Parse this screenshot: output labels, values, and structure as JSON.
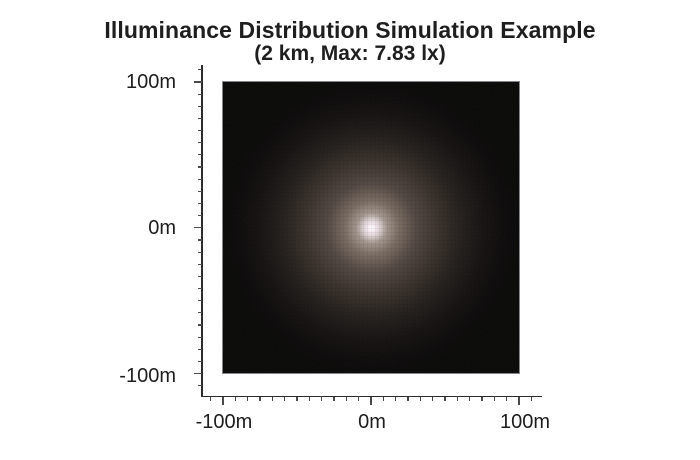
{
  "figure": {
    "title_line1": "Illuminance Distribution Simulation Example",
    "title_line2": "(2 km, Max: 7.83 lx)"
  },
  "axes": {
    "y_tick_labels": [
      "100m",
      "0m",
      "-100m"
    ],
    "x_tick_labels": [
      "-100m",
      "0m",
      "100m"
    ]
  },
  "chart_data": {
    "type": "heatmap",
    "title": "Illuminance Distribution Simulation Example",
    "subtitle": "(2 km, Max: 7.83 lx)",
    "distance_km": 2,
    "max_illuminance_lx": 7.83,
    "x_axis": {
      "tick_labels": [
        "-100m",
        "0m",
        "100m"
      ],
      "range_m": [
        -100,
        100
      ],
      "unit": "m"
    },
    "y_axis": {
      "tick_labels": [
        "100m",
        "0m",
        "-100m"
      ],
      "range_m": [
        -100,
        100
      ],
      "unit": "m"
    },
    "grid": false,
    "legend": null,
    "distribution": "single circular hotspot centered at (0m, 0m), brightness decaying radially to black at the edges",
    "hotspot_center_m": [
      0,
      0
    ],
    "radial_profile": [
      {
        "radius_m": 0,
        "relative_brightness": 1.0
      },
      {
        "radius_m": 5,
        "relative_brightness": 0.98
      },
      {
        "radius_m": 10,
        "relative_brightness": 0.67
      },
      {
        "radius_m": 15,
        "relative_brightness": 0.52
      },
      {
        "radius_m": 20,
        "relative_brightness": 0.41
      },
      {
        "radius_m": 30,
        "relative_brightness": 0.28
      },
      {
        "radius_m": 40,
        "relative_brightness": 0.21
      },
      {
        "radius_m": 50,
        "relative_brightness": 0.16
      },
      {
        "radius_m": 65,
        "relative_brightness": 0.1
      },
      {
        "radius_m": 80,
        "relative_brightness": 0.06
      },
      {
        "radius_m": 100,
        "relative_brightness": 0.035
      },
      {
        "radius_m": 140,
        "relative_brightness": 0.03
      }
    ],
    "colors": {
      "figure_background": "#ffffff",
      "image_background": "#080807",
      "image_border": "#85858a",
      "axis_line": "#2b2b2b",
      "tick": "#4a4a4a",
      "text": "#1d1d1d",
      "title_text": "#1e1e1e",
      "glow_core": "#fffefe",
      "glow_core_tint": "#f7ecf3",
      "glow_gradient": [
        {
          "pos": 0.0,
          "color": "#fffefe"
        },
        {
          "pos": 0.025,
          "color": "#f7ecf3"
        },
        {
          "pos": 0.055,
          "color": "#ddd1d3"
        },
        {
          "pos": 0.1,
          "color": "#a3968e"
        },
        {
          "pos": 0.18,
          "color": "#796c62"
        },
        {
          "pos": 0.3,
          "color": "#524741"
        },
        {
          "pos": 0.45,
          "color": "#38302a"
        },
        {
          "pos": 0.6,
          "color": "#231e1b"
        },
        {
          "pos": 0.75,
          "color": "#141110"
        },
        {
          "pos": 0.9,
          "color": "#0b0909"
        },
        {
          "pos": 1.0,
          "color": "#080807"
        }
      ]
    }
  }
}
